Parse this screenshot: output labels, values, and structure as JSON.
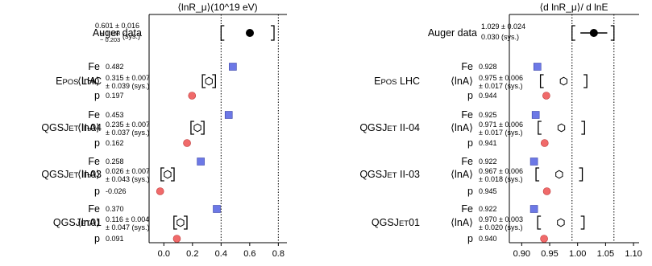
{
  "chart_data": [
    {
      "type": "scatter",
      "title": "⟨lnR_μ⟩(10^19 eV)",
      "xlim": [
        -0.12,
        0.86
      ],
      "xticks": [
        0.0,
        0.2,
        0.4,
        0.6,
        0.8
      ],
      "tick_labels": [
        "0.0",
        "0.2",
        "0.4",
        "0.6",
        "0.8"
      ],
      "reference_lines": [
        0.4,
        0.8
      ],
      "auger": {
        "label": "Auger data",
        "value": 0.601,
        "value_text": "0.601 ± 0.016",
        "sys_plus": "+ 0.168",
        "sys_minus": "− 0.203",
        "sys_suffix": "(sys.)",
        "sys_bracket": [
          0.4,
          0.77
        ]
      },
      "models": [
        {
          "name": "EPOS LHC",
          "fe": 0.482,
          "fe_text": "0.482",
          "p": 0.197,
          "p_text": "0.197",
          "lnA": 0.315,
          "lnA_text": "0.315 ± 0.007",
          "lnA_sys_text": "± 0.039 (sys.)"
        },
        {
          "name": "QGSJET II-04",
          "fe": 0.453,
          "fe_text": "0.453",
          "p": 0.162,
          "p_text": "0.162",
          "lnA": 0.235,
          "lnA_text": "0.235 ± 0.007",
          "lnA_sys_text": "± 0.037 (sys.)"
        },
        {
          "name": "QGSJET II-03",
          "fe": 0.258,
          "fe_text": "0.258",
          "p": -0.026,
          "p_text": "-0.026",
          "lnA": 0.026,
          "lnA_text": "0.026 ± 0.007",
          "lnA_sys_text": "± 0.043 (sys.)"
        },
        {
          "name": "QGSJET01",
          "fe": 0.37,
          "fe_text": "0.370",
          "p": 0.091,
          "p_text": "0.091",
          "lnA": 0.116,
          "lnA_text": "0.116 ± 0.004",
          "lnA_sys_text": "± 0.047 (sys.)"
        }
      ]
    },
    {
      "type": "scatter",
      "title": "⟨d lnR_μ⟩/ d lnE",
      "xlim": [
        0.875,
        1.11
      ],
      "xticks": [
        0.9,
        0.95,
        1.0,
        1.05,
        1.1
      ],
      "tick_labels": [
        "0.90",
        "0.95",
        "1.00",
        "1.05",
        "1.10"
      ],
      "reference_lines": [
        0.99,
        1.065
      ],
      "auger": {
        "label": "Auger data",
        "value": 1.029,
        "value_text": "1.029 ± 0.024",
        "sys_text": "0.030 (sys.)",
        "stat_error": 0.024,
        "sys_bracket": [
          0.99,
          1.065
        ]
      },
      "models": [
        {
          "name": "EPOS LHC",
          "fe": 0.928,
          "fe_text": "0.928",
          "p": 0.944,
          "p_text": "0.944",
          "lnA": 0.975,
          "lnA_text": "0.975 ± 0.006",
          "lnA_sys_text": "± 0.017 (sys.)"
        },
        {
          "name": "QGSJET II-04",
          "fe": 0.925,
          "fe_text": "0.925",
          "p": 0.941,
          "p_text": "0.941",
          "lnA": 0.971,
          "lnA_text": "0.971 ± 0.006",
          "lnA_sys_text": "± 0.017 (sys.)"
        },
        {
          "name": "QGSJET II-03",
          "fe": 0.922,
          "fe_text": "0.922",
          "p": 0.945,
          "p_text": "0.945",
          "lnA": 0.967,
          "lnA_text": "0.967 ± 0.006",
          "lnA_sys_text": "± 0.018 (sys.)"
        },
        {
          "name": "QGSJET01",
          "fe": 0.922,
          "fe_text": "0.922",
          "p": 0.94,
          "p_text": "0.940",
          "lnA": 0.97,
          "lnA_text": "0.970 ± 0.003",
          "lnA_sys_text": "± 0.020 (sys.)"
        }
      ]
    }
  ],
  "labels": {
    "fe": "Fe",
    "p": "p",
    "lnA": "⟨lnA⟩"
  },
  "colors": {
    "fe_marker": "#6c78e6",
    "p_marker": "#f06a6a",
    "auger_marker": "#000000"
  }
}
